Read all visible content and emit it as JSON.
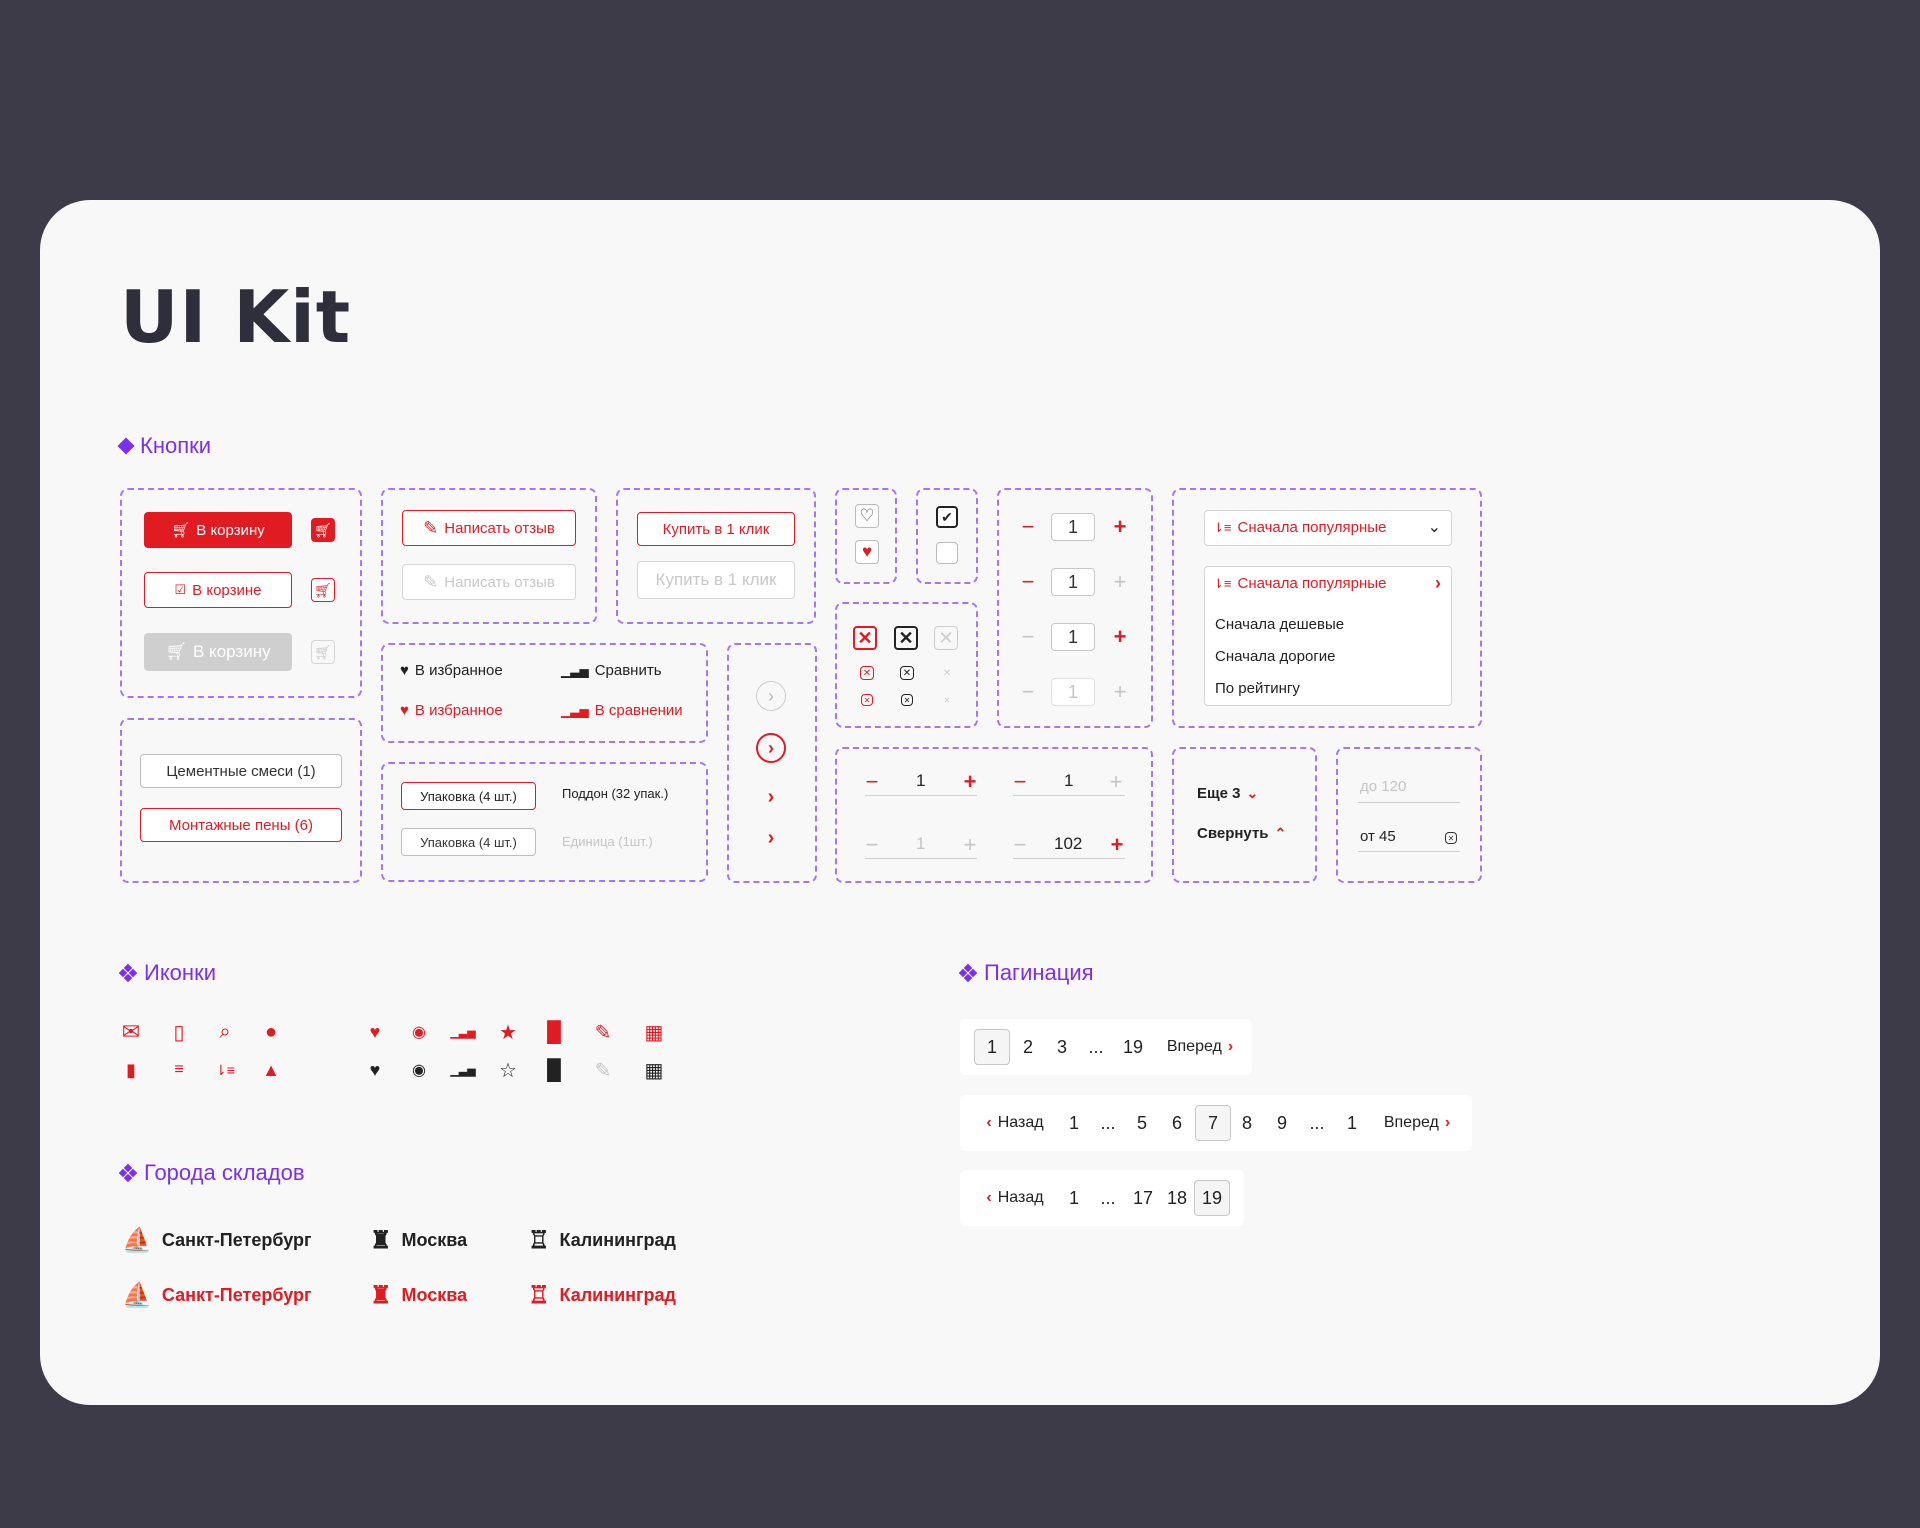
{
  "page_title": "UI Kit",
  "sections": {
    "buttons": "Кнопки",
    "icons": "Иконки",
    "pagination": "Пагинация",
    "cities": "Города складов"
  },
  "cart": {
    "add": "В корзину",
    "in_cart": "В корзине",
    "add_disabled": "В корзину"
  },
  "review": {
    "write": "Написать отзыв",
    "write_disabled": "Написать отзыв"
  },
  "oneclick": {
    "buy": "Купить в 1 клик",
    "buy_disabled": "Купить в 1 клик"
  },
  "fav": {
    "add": "В избранное",
    "added": "В избранное",
    "compare": "Сравнить",
    "in_compare": "В сравнении"
  },
  "filters": {
    "cement": "Цементные смеси (1)",
    "foam": "Монтажные пены (6)"
  },
  "packaging": {
    "pack_active": "Упаковка (4 шт.)",
    "pallet": "Поддон (32 упак.)",
    "pack": "Упаковка (4 шт.)",
    "unit_disabled": "Единица (1шт.)"
  },
  "quantity": {
    "values": [
      "1",
      "1",
      "1",
      "1"
    ],
    "line_values": [
      "1",
      "1",
      "1",
      "102"
    ]
  },
  "sort": {
    "selected": "Сначала популярные",
    "options": [
      "Сначала популярные",
      "Сначала дешевые",
      "Сначала дорогие",
      "По рейтингу"
    ]
  },
  "more": {
    "more": "Еще 3",
    "collapse": "Свернуть"
  },
  "range": {
    "to_placeholder": "до 120",
    "from_value": "от 45"
  },
  "pagination": {
    "row1": [
      "1",
      "2",
      "3",
      "...",
      "19"
    ],
    "row2": [
      "1",
      "...",
      "5",
      "6",
      "7",
      "8",
      "9",
      "...",
      "1"
    ],
    "row3": [
      "1",
      "...",
      "17",
      "18",
      "19"
    ],
    "next": "Вперед",
    "prev": "Назад"
  },
  "cities": {
    "spb": "Санкт-Петербург",
    "msk": "Москва",
    "kgd": "Калининград"
  },
  "colors": {
    "accent": "#e11b22",
    "purple": "#7b2ff0",
    "dark": "#2f2e3b"
  }
}
